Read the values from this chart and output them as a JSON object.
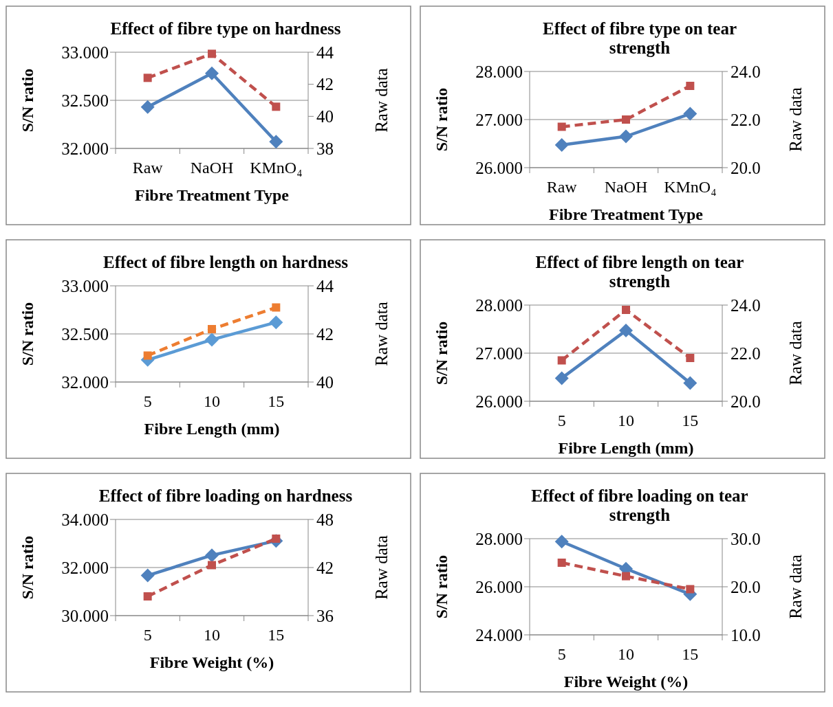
{
  "chart_data": [
    {
      "type": "line",
      "title": "Effect of fibre type on hardness",
      "xlabel": "Fibre Treatment Type",
      "ylabel": "S/N ratio",
      "y2label": "Raw data",
      "categories": [
        "Raw",
        "NaOH",
        "KMnO₄"
      ],
      "ylim": [
        32,
        33
      ],
      "yticks": [
        {
          "value": 32,
          "label": "32.000"
        },
        {
          "value": 32.5,
          "label": "32.500"
        },
        {
          "value": 33,
          "label": "33.000"
        }
      ],
      "y2lim": [
        38,
        44
      ],
      "y2ticks": [
        38,
        40,
        42,
        44
      ],
      "grid": "y",
      "series": [
        {
          "color": "#4f81bd",
          "values": [
            32.43,
            32.78,
            32.07
          ],
          "marker": "diamond",
          "line_style": "solid"
        },
        {
          "color": "#c0504d",
          "values": [
            42.4,
            43.9,
            40.6
          ],
          "axis": "y2",
          "marker": "square",
          "line_style": "dashed"
        }
      ]
    },
    {
      "type": "line",
      "title": "Effect of fibre type on tear strength",
      "xlabel": "Fibre Treatment Type",
      "ylabel": "S/N ratio",
      "y2label": "Raw data",
      "categories": [
        "Raw",
        "NaOH",
        "KMnO₄"
      ],
      "ylim": [
        26,
        28
      ],
      "yticks": [
        {
          "value": 26,
          "label": "26.000"
        },
        {
          "value": 27,
          "label": "27.000"
        },
        {
          "value": 28,
          "label": "28.000"
        }
      ],
      "y2lim": [
        20,
        24
      ],
      "y2ticks": [
        {
          "value": 20,
          "label": "20.0"
        },
        {
          "value": 22,
          "label": "22.0"
        },
        {
          "value": 24,
          "label": "24.0"
        }
      ],
      "grid": "y",
      "series": [
        {
          "color": "#4f81bd",
          "values": [
            26.47,
            26.65,
            27.12
          ],
          "marker": "diamond",
          "line_style": "solid"
        },
        {
          "color": "#c0504d",
          "values": [
            21.7,
            22.0,
            23.4
          ],
          "axis": "y2",
          "marker": "square",
          "line_style": "dashed"
        }
      ]
    },
    {
      "type": "line",
      "title": "Effect of fibre length on hardness",
      "xlabel": "Fibre Length (mm)",
      "ylabel": "S/N ratio",
      "y2label": "Raw data",
      "categories": [
        "5",
        "10",
        "15"
      ],
      "ylim": [
        32,
        33
      ],
      "yticks": [
        {
          "value": 32,
          "label": "32.000"
        },
        {
          "value": 32.5,
          "label": "32.500"
        },
        {
          "value": 33,
          "label": "33.000"
        }
      ],
      "y2lim": [
        40,
        44
      ],
      "y2ticks": [
        40,
        42,
        44
      ],
      "grid": "y",
      "series": [
        {
          "color": "#5b9bd5",
          "values": [
            32.23,
            32.44,
            32.62
          ],
          "marker": "diamond",
          "line_style": "solid"
        },
        {
          "color": "#ed7d31",
          "values": [
            41.1,
            42.2,
            43.1
          ],
          "axis": "y2",
          "marker": "square",
          "line_style": "dashed"
        }
      ]
    },
    {
      "type": "line",
      "title": "Effect of fibre length on tear strength",
      "xlabel": "Fibre Length (mm)",
      "ylabel": "S/N ratio",
      "y2label": "Raw data",
      "categories": [
        "5",
        "10",
        "15"
      ],
      "ylim": [
        26,
        28
      ],
      "yticks": [
        {
          "value": 26,
          "label": "26.000"
        },
        {
          "value": 27,
          "label": "27.000"
        },
        {
          "value": 28,
          "label": "28.000"
        }
      ],
      "y2lim": [
        20,
        24
      ],
      "y2ticks": [
        {
          "value": 20,
          "label": "20.0"
        },
        {
          "value": 22,
          "label": "22.0"
        },
        {
          "value": 24,
          "label": "24.0"
        }
      ],
      "grid": "y",
      "series": [
        {
          "color": "#4f81bd",
          "values": [
            26.48,
            27.47,
            26.38
          ],
          "marker": "diamond",
          "line_style": "solid"
        },
        {
          "color": "#c0504d",
          "values": [
            21.7,
            23.8,
            21.8
          ],
          "axis": "y2",
          "marker": "square",
          "line_style": "dashed"
        }
      ]
    },
    {
      "type": "line",
      "title": "Effect of fibre loading on hardness",
      "xlabel": "Fibre Weight (%)",
      "ylabel": "S/N ratio",
      "y2label": "Raw data",
      "categories": [
        "5",
        "10",
        "15"
      ],
      "ylim": [
        30,
        34
      ],
      "yticks": [
        {
          "value": 30,
          "label": "30.000"
        },
        {
          "value": 32,
          "label": "32.000"
        },
        {
          "value": 34,
          "label": "34.000"
        }
      ],
      "y2lim": [
        36,
        48
      ],
      "y2ticks": [
        36,
        42,
        48
      ],
      "grid": "y",
      "series": [
        {
          "color": "#4f81bd",
          "values": [
            31.67,
            32.51,
            33.11
          ],
          "marker": "diamond",
          "line_style": "solid"
        },
        {
          "color": "#c0504d",
          "values": [
            38.4,
            42.3,
            45.6
          ],
          "axis": "y2",
          "marker": "square",
          "line_style": "dashed"
        }
      ]
    },
    {
      "type": "line",
      "title": "Effect of fibre loading on tear strength",
      "xlabel": "Fibre Weight (%)",
      "ylabel": "S/N ratio",
      "y2label": "Raw data",
      "categories": [
        "5",
        "10",
        "15"
      ],
      "ylim": [
        24,
        28
      ],
      "yticks": [
        {
          "value": 24,
          "label": "24.000"
        },
        {
          "value": 26,
          "label": "26.000"
        },
        {
          "value": 28,
          "label": "28.000"
        }
      ],
      "y2lim": [
        10,
        30
      ],
      "y2ticks": [
        {
          "value": 10,
          "label": "10.0"
        },
        {
          "value": 20,
          "label": "20.0"
        },
        {
          "value": 30,
          "label": "30.0"
        }
      ],
      "grid": "y",
      "series": [
        {
          "color": "#4f81bd",
          "values": [
            27.88,
            26.75,
            25.69
          ],
          "marker": "diamond",
          "line_style": "solid"
        },
        {
          "color": "#c0504d",
          "values": [
            25.0,
            22.2,
            19.5
          ],
          "axis": "y2",
          "marker": "square",
          "line_style": "dashed"
        }
      ]
    }
  ]
}
